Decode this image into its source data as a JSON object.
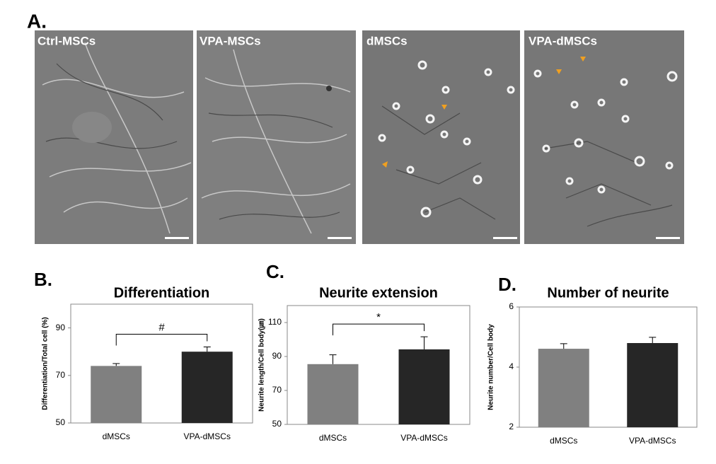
{
  "panel_a": {
    "label": "A.",
    "images": [
      "Ctrl-MSCs",
      "VPA-MSCs",
      "dMSCs",
      "VPA-dMSCs"
    ]
  },
  "chart_data": [
    {
      "type": "bar",
      "panel_label": "B.",
      "title": "Differentiation",
      "y_label": "Differentiation/Total  cell (%)",
      "categories": [
        "dMSCs",
        "VPA-dMSCs"
      ],
      "values": [
        74,
        80
      ],
      "errors": [
        1,
        2
      ],
      "colors": [
        "#808080",
        "#262626"
      ],
      "ylim": [
        50,
        100
      ],
      "yticks": [
        50,
        70,
        90
      ],
      "annotation": "#"
    },
    {
      "type": "bar",
      "panel_label": "C.",
      "title": "Neurite extension",
      "y_label": "Neurite length/Cell  body(㎛)",
      "categories": [
        "dMSCs",
        "VPA-dMSCs"
      ],
      "values": [
        85.5,
        94.2
      ],
      "errors": [
        5.5,
        7.4
      ],
      "colors": [
        "#808080",
        "#262626"
      ],
      "ylim": [
        50,
        120
      ],
      "yticks": [
        50,
        70,
        90,
        110
      ],
      "annotation": "*"
    },
    {
      "type": "bar",
      "panel_label": "D.",
      "title": "Number of neurite",
      "y_label": "Neurite number/Cell body",
      "categories": [
        "dMSCs",
        "VPA-dMSCs"
      ],
      "values": [
        4.61,
        4.8
      ],
      "errors": [
        0.17,
        0.19
      ],
      "colors": [
        "#808080",
        "#262626"
      ],
      "ylim": [
        2,
        6
      ],
      "yticks": [
        2,
        4,
        6
      ]
    }
  ]
}
